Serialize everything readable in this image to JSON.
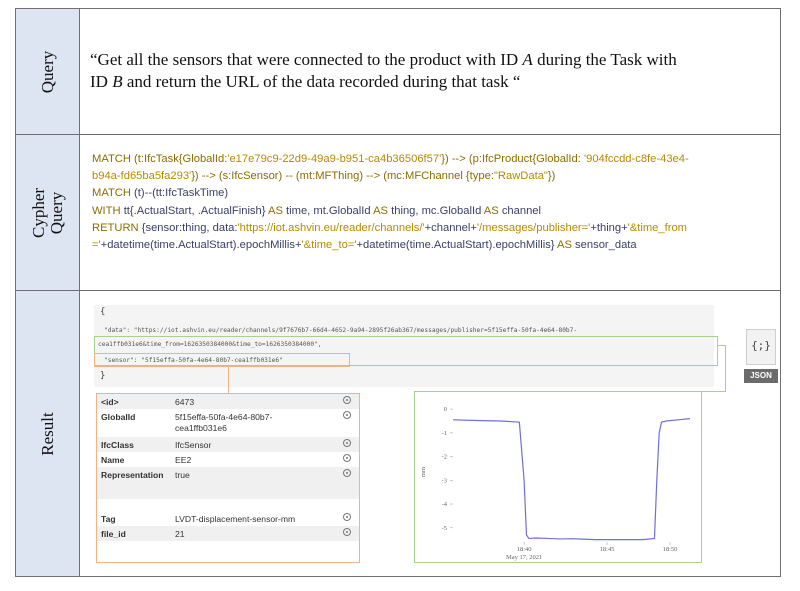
{
  "rows": {
    "query": {
      "label": "Query",
      "line1_parts": [
        "“Get all the sensors that were connected to the product with ID ",
        "A",
        " during the Task with"
      ],
      "line2_parts": [
        "ID ",
        "B",
        " and return the URL of the data recorded during that task “"
      ]
    },
    "cypher": {
      "label_line1": "Cypher",
      "label_line2": "Query",
      "line1": {
        "a": "MATCH (t:IfcTask{GlobalId:",
        "b": "'e17e79c9-22d9-49a9-b951-ca4b36506f57'",
        "c": "}) --> (p:IfcProduct{GlobalId: ",
        "d": "'904fccdd-c8fe-43e4-"
      },
      "line2": {
        "a": "b94a-fd65ba5fa293'",
        "b": "}) --> (s:IfcSensor) -- (mt:MFThing) --> (mc:MFChannel {type:",
        "c": "\"RawData\"",
        "d": "})"
      },
      "line3": {
        "a": "MATCH",
        "b": " (t)--(tt:IfcTaskTime)"
      },
      "line4": {
        "a": "WITH",
        "b": " tt{.ActualStart, .ActualFinish} ",
        "c": "AS",
        "d": " time, mt.GlobalId ",
        "e": "AS",
        "f": " thing, mc.GlobalId ",
        "g": "AS",
        "h": " channel"
      },
      "line5": {
        "a": "RETURN",
        "b": " {sensor:thing, data:",
        "c": "'https://iot.ashvin.eu/reader/channels/'",
        "d": "+channel+",
        "e": "'/messages/publisher='",
        "f": "+thing+",
        "g": "'&time_from"
      },
      "line6": {
        "a": "='",
        "b": "+datetime(time.ActualStart).epochMillis+",
        "c": "'&time_to='",
        "d": "+datetime(time.ActualStart).epochMillis} ",
        "e": "AS",
        "f": " sensor_data"
      }
    },
    "result": {
      "label": "Result",
      "json": {
        "open_brace": "{",
        "close_brace": "}",
        "data_line1": "\"data\": \"https://iot.ashvin.eu/reader/channels/9f7676b7-66d4-4652-9a94-2895f26ab367/messages/publisher=5f15effa-50fa-4e64-80b7-",
        "data_line2": "cea1ffb031e6&time_from=1626350384000&time_to=1626350384000\",",
        "sensor_line": "\"sensor\": \"5f15effa-50fa-4e64-80b7-cea1ffb031e6\""
      },
      "json_icon": {
        "icon": "json-file-icon",
        "glyph": "{;}",
        "tag": "JSON"
      },
      "properties": [
        {
          "key": "<id>",
          "value": "6473"
        },
        {
          "key": "GlobalId",
          "value": "5f15effa-50fa-4e64-80b7-cea1ffb031e6"
        },
        {
          "key": "IfcClass",
          "value": "IfcSensor"
        },
        {
          "key": "Name",
          "value": "EE2"
        },
        {
          "key": "Representation",
          "value": "true"
        },
        {
          "key": "Tag",
          "value": "LVDT-displacement-sensor-mm"
        },
        {
          "key": "file_id",
          "value": "21"
        }
      ]
    }
  },
  "chart_data": {
    "type": "line",
    "title": "",
    "xlabel": "",
    "ylabel": "mm",
    "x_tick_labels": [
      "18:40",
      "18:45",
      "18:50"
    ],
    "x_date_label": "May 17, 2021",
    "y_tick_labels": [
      "0",
      "-1",
      "-2",
      "-3",
      "-4",
      "-5"
    ],
    "ylim": [
      -5.6,
      0.3
    ],
    "xlim": [
      0,
      100
    ],
    "series": [
      {
        "color": "#6f6fd8",
        "x": [
          0,
          10,
          20,
          28,
          30,
          31,
          32,
          35,
          40,
          45,
          50,
          55,
          60,
          65,
          70,
          75,
          80,
          85,
          86,
          87,
          88,
          90,
          95,
          100
        ],
        "y": [
          -0.45,
          -0.48,
          -0.5,
          -0.55,
          -3.0,
          -5.3,
          -5.45,
          -5.43,
          -5.45,
          -5.47,
          -5.46,
          -5.48,
          -5.5,
          -5.5,
          -5.5,
          -5.5,
          -5.5,
          -5.45,
          -3.0,
          -1.0,
          -0.55,
          -0.5,
          -0.45,
          -0.4
        ]
      }
    ]
  }
}
